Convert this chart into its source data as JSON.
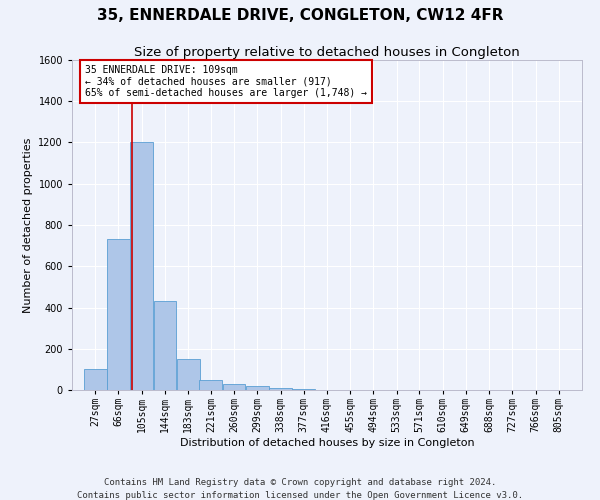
{
  "title": "35, ENNERDALE DRIVE, CONGLETON, CW12 4FR",
  "subtitle": "Size of property relative to detached houses in Congleton",
  "xlabel": "Distribution of detached houses by size in Congleton",
  "ylabel": "Number of detached properties",
  "footer_line1": "Contains HM Land Registry data © Crown copyright and database right 2024.",
  "footer_line2": "Contains public sector information licensed under the Open Government Licence v3.0.",
  "bin_labels": [
    "27sqm",
    "66sqm",
    "105sqm",
    "144sqm",
    "183sqm",
    "221sqm",
    "260sqm",
    "299sqm",
    "338sqm",
    "377sqm",
    "416sqm",
    "455sqm",
    "494sqm",
    "533sqm",
    "571sqm",
    "610sqm",
    "649sqm",
    "688sqm",
    "727sqm",
    "766sqm",
    "805sqm"
  ],
  "bin_edges": [
    27,
    66,
    105,
    144,
    183,
    221,
    260,
    299,
    338,
    377,
    416,
    455,
    494,
    533,
    571,
    610,
    649,
    688,
    727,
    766,
    805
  ],
  "bar_heights": [
    100,
    730,
    1200,
    430,
    150,
    50,
    30,
    20,
    10,
    5,
    2,
    1,
    0,
    0,
    0,
    0,
    0,
    0,
    0,
    0
  ],
  "bar_color": "#aec6e8",
  "bar_edge_color": "#5a9fd4",
  "red_line_x": 109,
  "annotation_text": "35 ENNERDALE DRIVE: 109sqm\n← 34% of detached houses are smaller (917)\n65% of semi-detached houses are larger (1,748) →",
  "annotation_box_color": "#ffffff",
  "annotation_box_edge_color": "#cc0000",
  "ylim": [
    0,
    1600
  ],
  "yticks": [
    0,
    200,
    400,
    600,
    800,
    1000,
    1200,
    1400,
    1600
  ],
  "background_color": "#eef2fb",
  "grid_color": "#ffffff",
  "title_fontsize": 11,
  "subtitle_fontsize": 9.5,
  "axis_label_fontsize": 8,
  "tick_fontsize": 7,
  "footer_fontsize": 6.5,
  "ylabel_fontsize": 8
}
